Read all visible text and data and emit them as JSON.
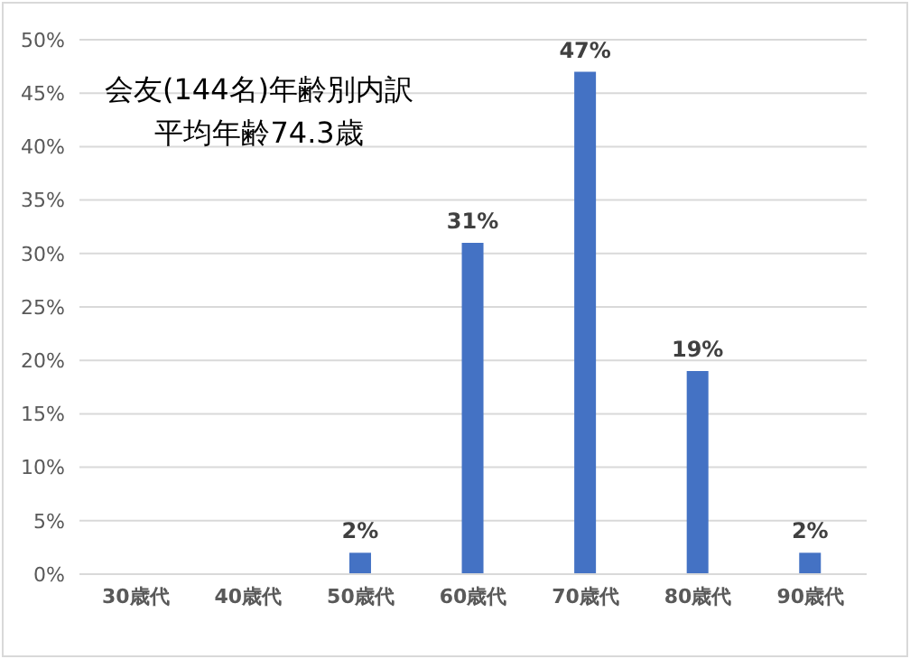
{
  "chart_data": {
    "type": "bar",
    "title": "会友(144名)年齢別内訳",
    "subtitle": "平均年齢74.3歳",
    "categories": [
      "30歳代",
      "40歳代",
      "50歳代",
      "60歳代",
      "70歳代",
      "80歳代",
      "90歳代"
    ],
    "values": [
      0,
      0,
      2,
      31,
      47,
      19,
      2
    ],
    "value_labels": [
      null,
      null,
      "2%",
      "31%",
      "47%",
      "19%",
      "2%"
    ],
    "color": "#4472c4",
    "ylim": [
      0,
      50
    ],
    "yticks": [
      {
        "value": 0,
        "label": "0%"
      },
      {
        "value": 5,
        "label": "5%"
      },
      {
        "value": 10,
        "label": "10%"
      },
      {
        "value": 15,
        "label": "15%"
      },
      {
        "value": 20,
        "label": "20%"
      },
      {
        "value": 25,
        "label": "25%"
      },
      {
        "value": 30,
        "label": "30%"
      },
      {
        "value": 35,
        "label": "35%"
      },
      {
        "value": 40,
        "label": "40%"
      },
      {
        "value": 45,
        "label": "45%"
      },
      {
        "value": 50,
        "label": "50%"
      }
    ],
    "grid": "y",
    "legend": false
  }
}
